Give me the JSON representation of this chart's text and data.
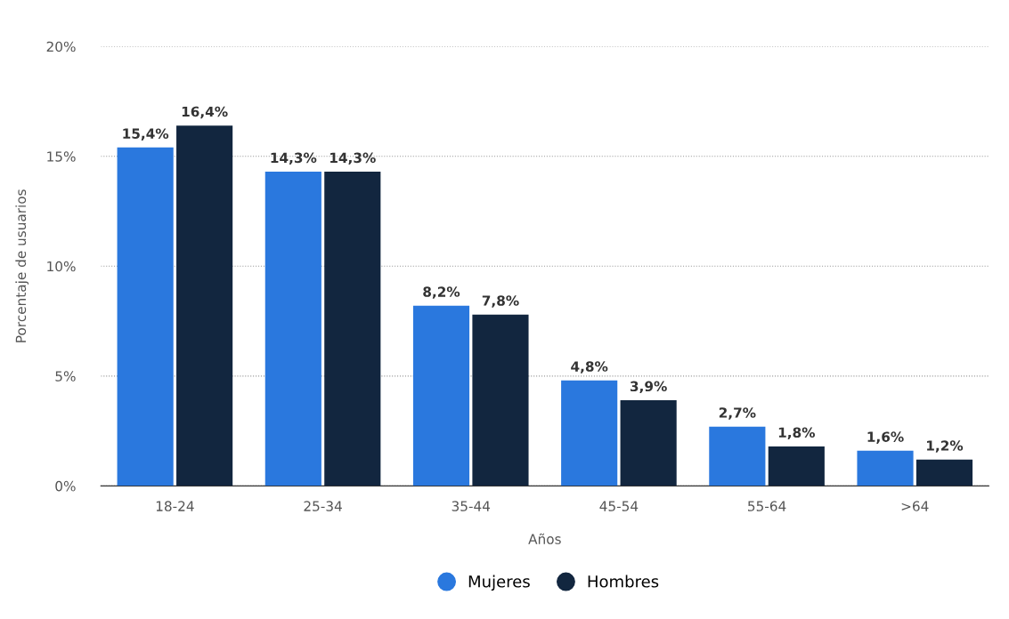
{
  "chart_data": {
    "type": "bar",
    "xlabel": "Años",
    "ylabel": "Porcentaje de usuarios",
    "categories": [
      "18-24",
      "25-34",
      "35-44",
      "45-54",
      "55-64",
      ">64"
    ],
    "series": [
      {
        "name": "Mujeres",
        "color": "#2a78de",
        "values": [
          15.4,
          14.3,
          8.2,
          4.8,
          2.7,
          1.6
        ],
        "value_labels": [
          "15,4%",
          "14,3%",
          "8,2%",
          "4,8%",
          "2,7%",
          "1,6%"
        ]
      },
      {
        "name": "Hombres",
        "color": "#12263f",
        "values": [
          16.4,
          14.3,
          7.8,
          3.9,
          1.8,
          1.2
        ],
        "value_labels": [
          "16,4%",
          "14,3%",
          "7,8%",
          "3,9%",
          "1,8%",
          "1,2%"
        ]
      }
    ],
    "ylim": [
      0,
      20
    ],
    "yticks": [
      {
        "value": 0,
        "label": "0%"
      },
      {
        "value": 5,
        "label": "5%"
      },
      {
        "value": 10,
        "label": "10%"
      },
      {
        "value": 15,
        "label": "15%"
      },
      {
        "value": 20,
        "label": "20%"
      }
    ],
    "grid": "y",
    "legend": "bottom"
  }
}
